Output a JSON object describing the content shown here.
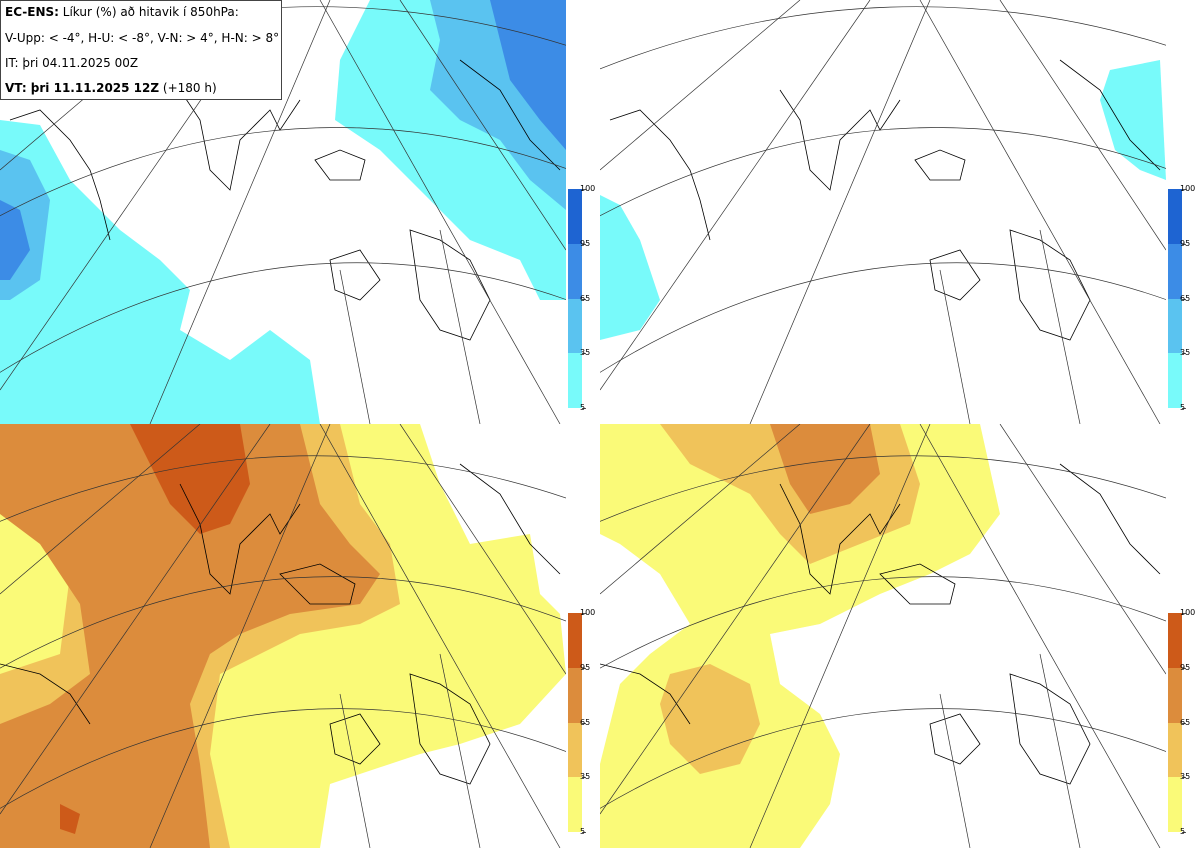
{
  "legend": {
    "line1_model": "EC-ENS:",
    "line1_desc": "Líkur (%) að hitavik í 850hPa:",
    "line2": "V-Upp: < -4°, H-U: < -8°, V-N: > 4°, H-N: > 8°",
    "line3": "IT: þri 04.11.2025 00Z",
    "line4_bold": "VT: þri 11.11.2025 12Z",
    "line4_rest": "(+180 h)"
  },
  "colorbars": {
    "cold": {
      "ticks": [
        "100",
        "95",
        "65",
        "35",
        "5"
      ],
      "colors": [
        "#1e64d2",
        "#3c8ce6",
        "#5ac3f0",
        "#78fafa"
      ]
    },
    "warm": {
      "ticks": [
        "100",
        "95",
        "65",
        "35",
        "5"
      ],
      "colors": [
        "#cd5a19",
        "#dc8c3c",
        "#f0c35a",
        "#fafa78"
      ]
    }
  },
  "panels": [
    {
      "id": "V-Upp",
      "kind": "cold"
    },
    {
      "id": "H-U",
      "kind": "cold"
    },
    {
      "id": "V-N",
      "kind": "warm"
    },
    {
      "id": "H-N",
      "kind": "warm"
    }
  ]
}
